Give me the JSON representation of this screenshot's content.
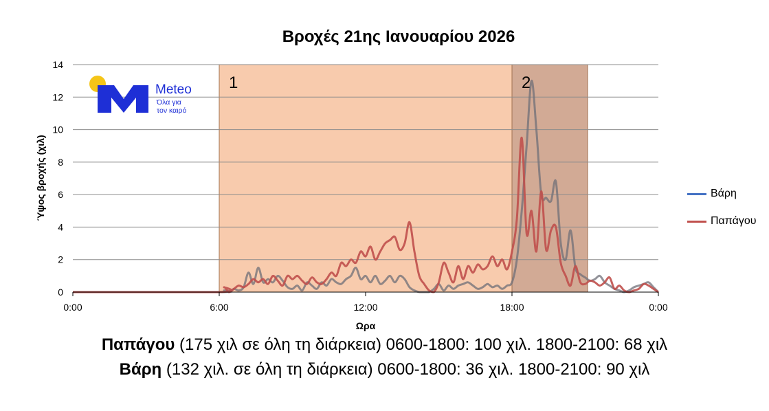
{
  "chart_data": {
    "type": "line",
    "title": "Βροχές 21ης Ιανουαρίου 2026",
    "xlabel": "Ωρα",
    "ylabel": "Ύψος βροχής (χιλ)",
    "x_ticks": [
      "0:00",
      "6:00",
      "12:00",
      "18:00",
      "0:00"
    ],
    "x_range_hours": [
      0,
      24
    ],
    "ylim": [
      0,
      14
    ],
    "y_ticks": [
      0,
      2,
      4,
      6,
      8,
      10,
      12,
      14
    ],
    "grid": "horizontal",
    "legend_position": "right",
    "periods": [
      {
        "label": "1",
        "start_hour": 6,
        "end_hour": 18,
        "color": "#f8cbad"
      },
      {
        "label": "2",
        "start_hour": 18,
        "end_hour": 21.1,
        "color": "#d2aa95"
      }
    ],
    "series": [
      {
        "name": "Βάρη",
        "color": "#4472c4",
        "x": [
          0,
          6,
          6.2,
          6.4,
          6.6,
          6.8,
          7.0,
          7.2,
          7.4,
          7.6,
          7.8,
          8.0,
          8.2,
          8.4,
          8.6,
          8.8,
          9.0,
          9.2,
          9.4,
          9.6,
          9.8,
          10.0,
          10.2,
          10.4,
          10.6,
          10.8,
          11.0,
          11.2,
          11.4,
          11.6,
          11.8,
          12.0,
          12.2,
          12.4,
          12.6,
          12.8,
          13.0,
          13.2,
          13.4,
          13.6,
          13.8,
          14.0,
          14.2,
          14.4,
          14.6,
          14.8,
          15.0,
          15.2,
          15.4,
          15.6,
          15.8,
          16.0,
          16.2,
          16.4,
          16.6,
          16.8,
          17.0,
          17.2,
          17.4,
          17.6,
          17.8,
          18.0,
          18.2,
          18.4,
          18.6,
          18.8,
          19.0,
          19.2,
          19.4,
          19.6,
          19.8,
          20.0,
          20.2,
          20.4,
          20.6,
          20.8,
          21.0,
          21.2,
          21.4,
          21.6,
          21.8,
          22.0,
          22.2,
          22.4,
          22.6,
          22.8,
          23.0,
          23.2,
          23.4,
          23.6,
          23.8,
          24.0
        ],
        "values": [
          0,
          0,
          0.1,
          0,
          0.2,
          0.1,
          0.3,
          1.2,
          0.5,
          1.5,
          0.6,
          0.8,
          0.6,
          1.0,
          0.7,
          0.3,
          0.2,
          0.4,
          0.1,
          0.6,
          0.4,
          0.2,
          0.6,
          0.4,
          0.8,
          0.6,
          0.5,
          0.8,
          1.0,
          1.5,
          0.8,
          1.0,
          0.6,
          1.0,
          0.5,
          0.7,
          1.0,
          0.6,
          1.0,
          0.8,
          0.3,
          0.1,
          0,
          0,
          0,
          0.2,
          0.5,
          0.1,
          0.4,
          0.2,
          0.4,
          0.5,
          0.6,
          0.4,
          0.2,
          0.3,
          0.5,
          0.3,
          0.4,
          0.2,
          0.4,
          0.6,
          2.0,
          5.0,
          9.0,
          13.0,
          10.0,
          6.0,
          5.8,
          5.6,
          6.8,
          3.0,
          2.0,
          3.8,
          1.5,
          1.1,
          0.9,
          0.7,
          0.8,
          1.0,
          0.6,
          0.4,
          0.2,
          0.1,
          0,
          0.1,
          0.3,
          0.4,
          0.5,
          0.6,
          0.3,
          0
        ]
      },
      {
        "name": "Παπάγου",
        "color": "#c0504d",
        "x": [
          0,
          6,
          6.2,
          6.4,
          6.6,
          6.8,
          7.0,
          7.2,
          7.4,
          7.6,
          7.8,
          8.0,
          8.2,
          8.4,
          8.6,
          8.8,
          9.0,
          9.2,
          9.4,
          9.6,
          9.8,
          10.0,
          10.2,
          10.4,
          10.6,
          10.8,
          11.0,
          11.2,
          11.4,
          11.6,
          11.8,
          12.0,
          12.2,
          12.4,
          12.6,
          12.8,
          13.0,
          13.2,
          13.4,
          13.6,
          13.8,
          14.0,
          14.2,
          14.4,
          14.6,
          14.8,
          15.0,
          15.2,
          15.4,
          15.6,
          15.8,
          16.0,
          16.2,
          16.4,
          16.6,
          16.8,
          17.0,
          17.2,
          17.4,
          17.6,
          17.8,
          18.0,
          18.2,
          18.4,
          18.6,
          18.8,
          19.0,
          19.2,
          19.4,
          19.6,
          19.8,
          20.0,
          20.2,
          20.4,
          20.6,
          20.8,
          21.0,
          21.2,
          21.4,
          21.6,
          21.8,
          22.0,
          22.2,
          22.4,
          22.6,
          22.8,
          23.0,
          23.2,
          23.4,
          23.6,
          23.8,
          24.0
        ],
        "values": [
          0,
          0,
          0.3,
          0,
          0.2,
          0.4,
          0.3,
          0.5,
          0.8,
          0.6,
          0.8,
          0.5,
          1.0,
          0.7,
          0.4,
          1.0,
          0.8,
          1.0,
          0.7,
          0.5,
          0.9,
          0.6,
          0.5,
          0.8,
          1.2,
          1.0,
          1.8,
          1.6,
          2.0,
          1.8,
          2.5,
          2.2,
          2.8,
          2.0,
          2.5,
          3.0,
          3.2,
          3.4,
          2.6,
          3.0,
          4.3,
          2.5,
          1.0,
          0.5,
          0.1,
          0,
          0.6,
          1.8,
          1.2,
          0.6,
          1.6,
          0.8,
          1.6,
          1.2,
          1.7,
          1.4,
          1.6,
          2.2,
          1.6,
          2.0,
          1.4,
          2.5,
          4.5,
          9.5,
          3.6,
          5.0,
          2.5,
          6.2,
          2.6,
          3.8,
          4.0,
          1.8,
          1.0,
          0.4,
          1.6,
          0.6,
          0.5,
          0.7,
          0.6,
          0.4,
          0.6,
          0.9,
          0.2,
          0.4,
          0.1,
          0,
          0.1,
          0.2,
          0.5,
          0.4,
          0.2,
          0
        ]
      }
    ]
  },
  "logo": {
    "name": "Meteo",
    "tagline_line1": "Όλα για",
    "tagline_line2": "τον καιρό"
  },
  "footnotes": {
    "line1_bold": "Παπάγου",
    "line1_rest": " (175 χιλ σε όλη τη διάρκεια) 0600-1800: 100 χιλ. 1800-2100: 68 χιλ",
    "line2_bold": "Βάρη",
    "line2_rest": " (132 χιλ. σε όλη τη διάρκεια) 0600-1800: 36 χιλ. 1800-2100: 90 χιλ"
  },
  "colors": {
    "period1": "#f8cbad",
    "period2": "#d2aa95",
    "logo_blue": "#1e2fd6",
    "logo_sun": "#f5c518"
  }
}
